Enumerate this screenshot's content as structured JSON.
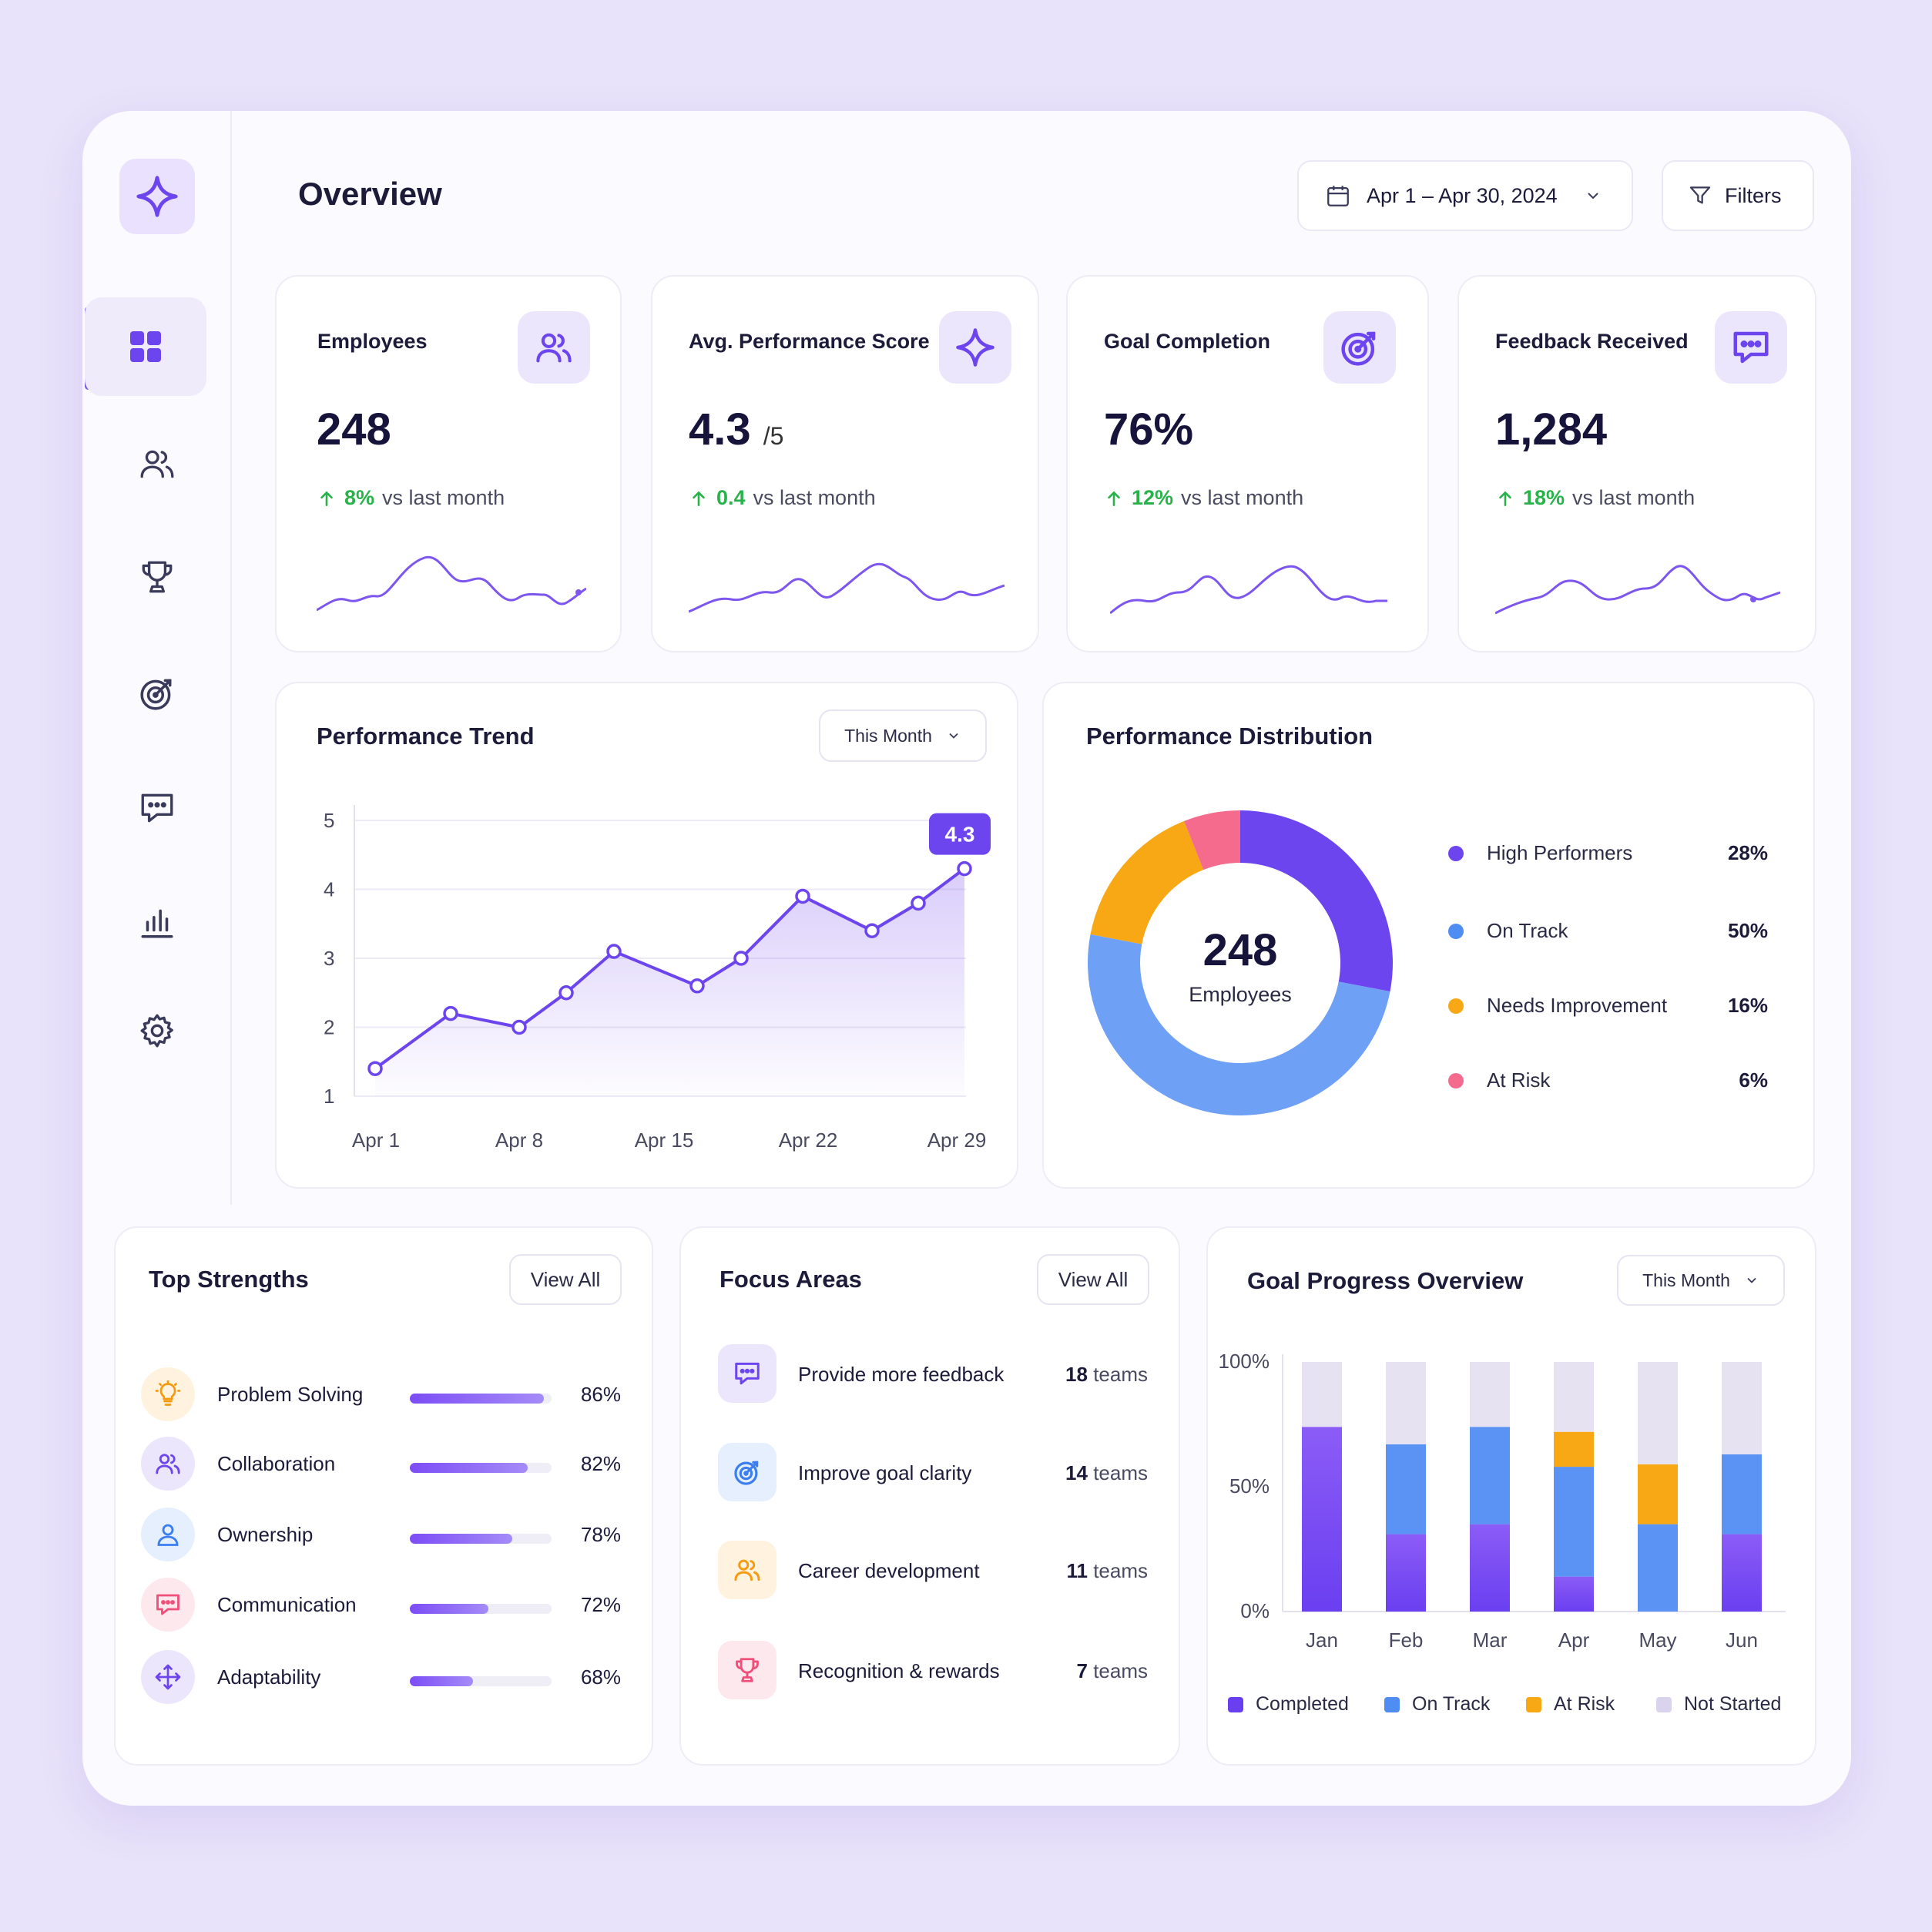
{
  "header": {
    "title": "Overview",
    "date_range": "Apr 1 – Apr 30, 2024",
    "filters_label": "Filters"
  },
  "sidebar": {
    "items": [
      {
        "name": "dashboard",
        "icon": "grid-icon",
        "active": true
      },
      {
        "name": "people",
        "icon": "users-icon"
      },
      {
        "name": "awards",
        "icon": "trophy-icon"
      },
      {
        "name": "goals",
        "icon": "target-icon"
      },
      {
        "name": "feedback",
        "icon": "message-icon"
      },
      {
        "name": "reports",
        "icon": "bar-chart-icon"
      },
      {
        "name": "settings",
        "icon": "gear-icon"
      }
    ]
  },
  "kpis": [
    {
      "label": "Employees",
      "value": "248",
      "suffix": "",
      "delta": "8%",
      "delta_text": "vs last month",
      "icon": "users-icon"
    },
    {
      "label": "Avg. Performance Score",
      "value": "4.3",
      "suffix": "/5",
      "delta": "0.4",
      "delta_text": "vs last month",
      "icon": "sparkle-icon"
    },
    {
      "label": "Goal Completion",
      "value": "76%",
      "suffix": "",
      "delta": "12%",
      "delta_text": "vs last month",
      "icon": "target-icon"
    },
    {
      "label": "Feedback Received",
      "value": "1,284",
      "suffix": "",
      "delta": "18%",
      "delta_text": "vs last month",
      "icon": "message-icon"
    }
  ],
  "trend": {
    "title": "Performance Trend",
    "period": "This Month",
    "badge": "4.3"
  },
  "distribution": {
    "title": "Performance Distribution",
    "center_value": "248",
    "center_label": "Employees",
    "items": [
      {
        "label": "High Performers",
        "value": "28%",
        "color": "#6c45ee"
      },
      {
        "label": "On Track",
        "value": "50%",
        "color": "#4f8df3"
      },
      {
        "label": "Needs Improvement",
        "value": "16%",
        "color": "#f7a814"
      },
      {
        "label": "At Risk",
        "value": "6%",
        "color": "#f46b8e"
      }
    ]
  },
  "strengths": {
    "title": "Top Strengths",
    "view_all": "View All",
    "items": [
      {
        "label": "Problem Solving",
        "value": "86%",
        "pct": 86,
        "icon": "lightbulb-icon"
      },
      {
        "label": "Collaboration",
        "value": "82%",
        "pct": 82,
        "icon": "users-icon"
      },
      {
        "label": "Ownership",
        "value": "78%",
        "pct": 78,
        "icon": "user-icon"
      },
      {
        "label": "Communication",
        "value": "72%",
        "pct": 72,
        "icon": "message-icon"
      },
      {
        "label": "Adaptability",
        "value": "68%",
        "pct": 68,
        "icon": "arrows-move-icon"
      }
    ]
  },
  "focus": {
    "title": "Focus Areas",
    "view_all": "View All",
    "items": [
      {
        "label": "Provide more feedback",
        "count": "18",
        "unit": "teams",
        "icon": "message-icon"
      },
      {
        "label": "Improve goal clarity",
        "count": "14",
        "unit": "teams",
        "icon": "target-icon"
      },
      {
        "label": "Career development",
        "count": "11",
        "unit": "teams",
        "icon": "users-icon"
      },
      {
        "label": "Recognition & rewards",
        "count": "7",
        "unit": "teams",
        "icon": "trophy-icon"
      }
    ]
  },
  "goals": {
    "title": "Goal Progress Overview",
    "period": "This Month",
    "legend": [
      "Completed",
      "On Track",
      "At Risk",
      "Not Started"
    ]
  },
  "chart_data": [
    {
      "type": "line",
      "title": "Performance Trend",
      "x": [
        "Apr 1",
        "Apr 4",
        "Apr 6",
        "Apr 9",
        "Apr 11",
        "Apr 15",
        "Apr 19",
        "Apr 21",
        "Apr 24",
        "Apr 27",
        "Apr 29"
      ],
      "xticks": [
        "Apr 1",
        "Apr 8",
        "Apr 15",
        "Apr 22",
        "Apr 29"
      ],
      "values": [
        1.4,
        2.2,
        2.0,
        2.5,
        3.1,
        2.6,
        3.0,
        3.9,
        3.4,
        3.8,
        4.3
      ],
      "ylim": [
        1,
        5
      ],
      "yticks": [
        1,
        2,
        3,
        4,
        5
      ],
      "grid": true
    },
    {
      "type": "pie",
      "title": "Performance Distribution",
      "categories": [
        "High Performers",
        "On Track",
        "Needs Improvement",
        "At Risk"
      ],
      "values": [
        28,
        50,
        16,
        6
      ]
    },
    {
      "type": "bar",
      "title": "Goal Progress Overview",
      "stacked": true,
      "categories": [
        "Jan",
        "Feb",
        "Mar",
        "Apr",
        "May",
        "Jun"
      ],
      "yticks": [
        "0%",
        "50%",
        "100%"
      ],
      "ylim": [
        0,
        100
      ],
      "series": [
        {
          "name": "Completed",
          "color": "#7b3ff2",
          "values": [
            74,
            31,
            35,
            14,
            0,
            31
          ]
        },
        {
          "name": "On Track",
          "color": "#4f8df3",
          "values": [
            0,
            36,
            39,
            44,
            35,
            32
          ]
        },
        {
          "name": "At Risk",
          "color": "#f7a814",
          "values": [
            0,
            0,
            0,
            14,
            24,
            0
          ]
        },
        {
          "name": "Not Started",
          "color": "#e2def2",
          "values": [
            26,
            33,
            26,
            28,
            41,
            37
          ]
        }
      ]
    }
  ]
}
